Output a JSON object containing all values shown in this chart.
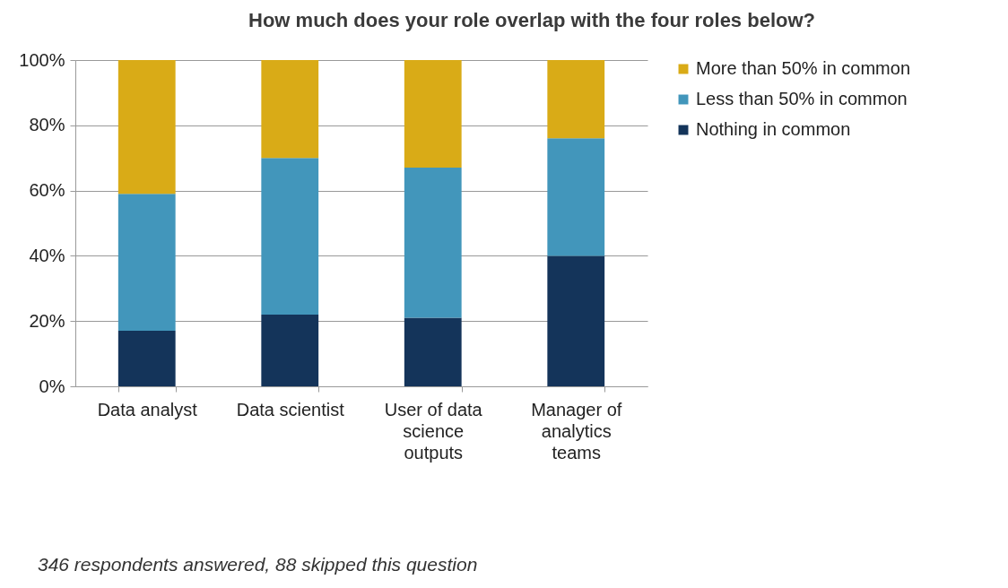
{
  "chart_data": {
    "type": "bar",
    "title": "How much does your role overlap with the four roles below?",
    "categories": [
      "Data analyst",
      "Data scientist",
      "User of  data science outputs",
      "Manager of analytics teams"
    ],
    "series": [
      {
        "name": "Nothing in common",
        "color": "#14345a",
        "values": [
          17,
          22,
          21,
          40
        ]
      },
      {
        "name": "Less than 50% in common",
        "color": "#4296bb",
        "values": [
          42,
          48,
          46,
          36
        ]
      },
      {
        "name": "More than 50% in common",
        "color": "#d9ab17",
        "values": [
          41,
          30,
          33,
          24
        ]
      }
    ],
    "stacked": true,
    "ylim": [
      0,
      100
    ],
    "yticks": [
      {
        "value": 0,
        "label": "0%"
      },
      {
        "value": 20,
        "label": "20%"
      },
      {
        "value": 40,
        "label": "40%"
      },
      {
        "value": 60,
        "label": "60%"
      },
      {
        "value": 80,
        "label": "80%"
      },
      {
        "value": 100,
        "label": "100%"
      }
    ],
    "grid": "y",
    "legend": "right",
    "annotations": [
      "346 respondents answered, 88 skipped this question"
    ]
  }
}
